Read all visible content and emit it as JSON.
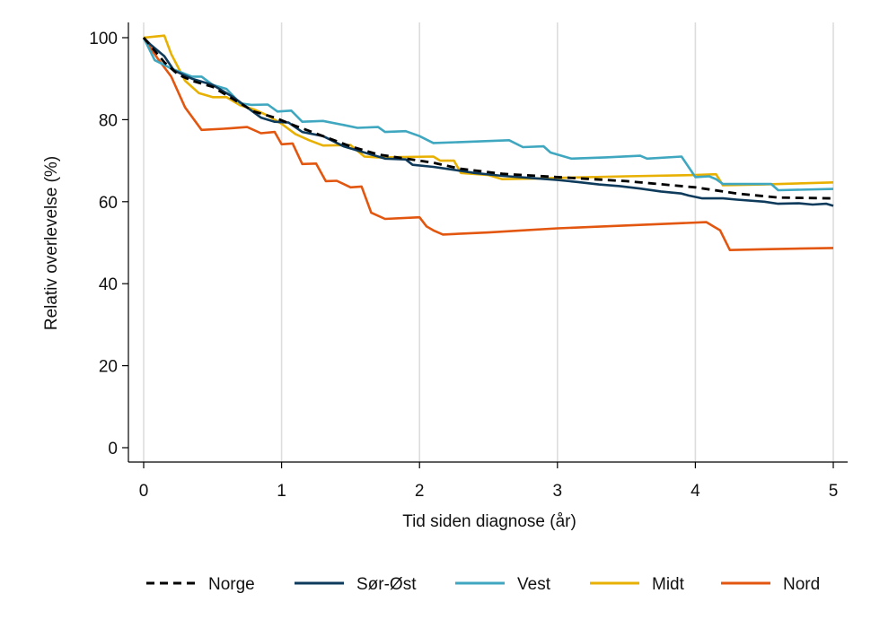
{
  "chart_data": {
    "type": "line",
    "title": "",
    "xlabel": "Tid siden diagnose (år)",
    "ylabel": "Relativ overlevelse (%)",
    "xlim": [
      0,
      5
    ],
    "ylim": [
      0,
      100
    ],
    "xticks": [
      0,
      1,
      2,
      3,
      4,
      5
    ],
    "yticks": [
      0,
      20,
      40,
      60,
      80,
      100
    ],
    "grid": "vertical",
    "legend_position": "bottom",
    "series": [
      {
        "name": "Norge",
        "color": "#000000",
        "dash": "dashed",
        "points": [
          [
            0,
            100
          ],
          [
            0.05,
            98
          ],
          [
            0.15,
            94
          ],
          [
            0.25,
            91
          ],
          [
            0.35,
            89.5
          ],
          [
            0.5,
            88
          ],
          [
            0.65,
            85
          ],
          [
            0.8,
            82
          ],
          [
            0.95,
            80.5
          ],
          [
            1.1,
            78.5
          ],
          [
            1.3,
            76
          ],
          [
            1.5,
            73.5
          ],
          [
            1.7,
            71.5
          ],
          [
            1.9,
            70.5
          ],
          [
            2.1,
            69.5
          ],
          [
            2.3,
            68
          ],
          [
            2.6,
            66.8
          ],
          [
            3.0,
            66
          ],
          [
            3.5,
            65
          ],
          [
            4.0,
            63.5
          ],
          [
            4.3,
            62
          ],
          [
            4.6,
            61
          ],
          [
            5.0,
            60.8
          ]
        ]
      },
      {
        "name": "Sør-Øst",
        "color": "#0e3b5c",
        "dash": "solid",
        "points": [
          [
            0,
            100
          ],
          [
            0.05,
            98.3
          ],
          [
            0.15,
            95.5
          ],
          [
            0.22,
            92
          ],
          [
            0.35,
            90
          ],
          [
            0.5,
            88.5
          ],
          [
            0.65,
            85.5
          ],
          [
            0.75,
            83
          ],
          [
            0.85,
            80.5
          ],
          [
            0.95,
            79.5
          ],
          [
            1.05,
            79.3
          ],
          [
            1.15,
            77
          ],
          [
            1.3,
            76
          ],
          [
            1.45,
            73.5
          ],
          [
            1.6,
            72
          ],
          [
            1.75,
            70.5
          ],
          [
            1.9,
            70.3
          ],
          [
            1.95,
            69
          ],
          [
            2.1,
            68.5
          ],
          [
            2.2,
            68
          ],
          [
            2.4,
            67
          ],
          [
            2.6,
            66.3
          ],
          [
            2.8,
            65.8
          ],
          [
            3.0,
            65.3
          ],
          [
            3.15,
            64.8
          ],
          [
            3.3,
            64.2
          ],
          [
            3.45,
            63.8
          ],
          [
            3.6,
            63.2
          ],
          [
            3.75,
            62.5
          ],
          [
            3.9,
            62
          ],
          [
            3.95,
            61.5
          ],
          [
            4.05,
            60.8
          ],
          [
            4.2,
            60.8
          ],
          [
            4.3,
            60.5
          ],
          [
            4.5,
            60
          ],
          [
            4.6,
            59.5
          ],
          [
            4.75,
            59.6
          ],
          [
            4.85,
            59.3
          ],
          [
            4.95,
            59.5
          ],
          [
            5.0,
            59
          ]
        ]
      },
      {
        "name": "Vest",
        "color": "#3fa7bf",
        "dash": "solid",
        "points": [
          [
            0,
            100
          ],
          [
            0.08,
            94.5
          ],
          [
            0.2,
            92.5
          ],
          [
            0.35,
            90.5
          ],
          [
            0.42,
            90.5
          ],
          [
            0.5,
            88.5
          ],
          [
            0.6,
            87.5
          ],
          [
            0.7,
            84
          ],
          [
            0.78,
            83.6
          ],
          [
            0.9,
            83.7
          ],
          [
            0.97,
            82
          ],
          [
            1.07,
            82.2
          ],
          [
            1.15,
            79.5
          ],
          [
            1.3,
            79.7
          ],
          [
            1.45,
            78.7
          ],
          [
            1.55,
            78
          ],
          [
            1.7,
            78.2
          ],
          [
            1.75,
            77
          ],
          [
            1.9,
            77.2
          ],
          [
            2.0,
            76
          ],
          [
            2.1,
            74.3
          ],
          [
            2.35,
            74.6
          ],
          [
            2.65,
            75
          ],
          [
            2.75,
            73.3
          ],
          [
            2.9,
            73.5
          ],
          [
            2.95,
            72
          ],
          [
            3.1,
            70.5
          ],
          [
            3.35,
            70.8
          ],
          [
            3.6,
            71.2
          ],
          [
            3.65,
            70.5
          ],
          [
            3.9,
            71
          ],
          [
            4.0,
            66
          ],
          [
            4.1,
            66.2
          ],
          [
            4.15,
            65.5
          ],
          [
            4.2,
            64.3
          ],
          [
            4.55,
            64.3
          ],
          [
            4.6,
            62.8
          ],
          [
            5.0,
            63.1
          ]
        ]
      },
      {
        "name": "Midt",
        "color": "#e8b000",
        "dash": "solid",
        "points": [
          [
            0,
            100
          ],
          [
            0.15,
            100.5
          ],
          [
            0.2,
            96
          ],
          [
            0.3,
            89.5
          ],
          [
            0.4,
            86.5
          ],
          [
            0.5,
            85.5
          ],
          [
            0.6,
            85.5
          ],
          [
            0.7,
            83.5
          ],
          [
            0.8,
            82.5
          ],
          [
            0.9,
            81
          ],
          [
            1.0,
            79
          ],
          [
            1.1,
            76.5
          ],
          [
            1.2,
            75
          ],
          [
            1.3,
            73.7
          ],
          [
            1.5,
            73.8
          ],
          [
            1.6,
            71
          ],
          [
            1.7,
            70.8
          ],
          [
            2.1,
            71
          ],
          [
            2.15,
            70
          ],
          [
            2.25,
            70
          ],
          [
            2.3,
            67
          ],
          [
            2.5,
            66.5
          ],
          [
            2.6,
            65.5
          ],
          [
            2.9,
            65.7
          ],
          [
            3.0,
            65.8
          ],
          [
            3.5,
            66.2
          ],
          [
            4.0,
            66.5
          ],
          [
            4.15,
            66.7
          ],
          [
            4.2,
            64
          ],
          [
            4.5,
            64.2
          ],
          [
            5.0,
            64.7
          ]
        ]
      },
      {
        "name": "Nord",
        "color": "#e2560f",
        "dash": "solid",
        "points": [
          [
            0,
            100
          ],
          [
            0.1,
            95
          ],
          [
            0.2,
            90.5
          ],
          [
            0.3,
            83
          ],
          [
            0.42,
            77.5
          ],
          [
            0.58,
            77.8
          ],
          [
            0.75,
            78.2
          ],
          [
            0.85,
            76.7
          ],
          [
            0.95,
            77
          ],
          [
            1.0,
            74
          ],
          [
            1.08,
            74.2
          ],
          [
            1.15,
            69.2
          ],
          [
            1.25,
            69.3
          ],
          [
            1.32,
            65
          ],
          [
            1.4,
            65.1
          ],
          [
            1.5,
            63.5
          ],
          [
            1.58,
            63.7
          ],
          [
            1.65,
            57.3
          ],
          [
            1.75,
            55.8
          ],
          [
            2.0,
            56.2
          ],
          [
            2.05,
            54
          ],
          [
            2.1,
            53
          ],
          [
            2.17,
            52
          ],
          [
            2.5,
            52.5
          ],
          [
            3.0,
            53.5
          ],
          [
            3.5,
            54.2
          ],
          [
            4.08,
            55
          ],
          [
            4.18,
            53
          ],
          [
            4.25,
            48.2
          ],
          [
            4.5,
            48.4
          ],
          [
            5.0,
            48.7
          ]
        ]
      }
    ]
  }
}
